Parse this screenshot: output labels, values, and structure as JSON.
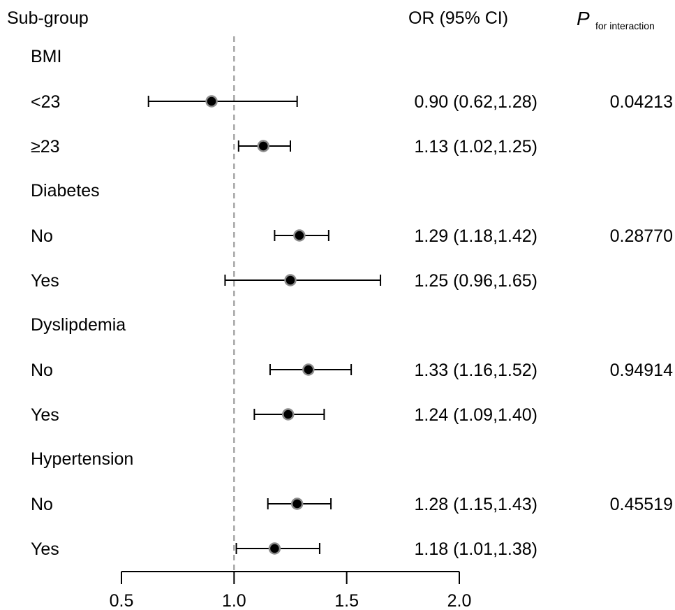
{
  "chart_data": {
    "type": "forest",
    "headers": {
      "subgroup": "Sub-group",
      "or_ci": "OR (95% CI)",
      "p_symbol": "P",
      "p_subscript": "for interaction"
    },
    "reference_line": 1.0,
    "xlim": [
      0.5,
      2.0
    ],
    "xticks": [
      "0.5",
      "1.0",
      "1.5",
      "2.0"
    ],
    "groups": [
      {
        "name": "BMI",
        "p_interaction": "0.04213",
        "rows": [
          {
            "label": "<23",
            "or": 0.9,
            "lo": 0.62,
            "hi": 1.28,
            "text": "0.90 (0.62,1.28)"
          },
          {
            "label": "≥23",
            "or": 1.13,
            "lo": 1.02,
            "hi": 1.25,
            "text": "1.13 (1.02,1.25)"
          }
        ]
      },
      {
        "name": "Diabetes",
        "p_interaction": "0.28770",
        "rows": [
          {
            "label": "No",
            "or": 1.29,
            "lo": 1.18,
            "hi": 1.42,
            "text": "1.29 (1.18,1.42)"
          },
          {
            "label": "Yes",
            "or": 1.25,
            "lo": 0.96,
            "hi": 1.65,
            "text": "1.25 (0.96,1.65)"
          }
        ]
      },
      {
        "name": "Dyslipdemia",
        "p_interaction": "0.94914",
        "rows": [
          {
            "label": "No",
            "or": 1.33,
            "lo": 1.16,
            "hi": 1.52,
            "text": "1.33 (1.16,1.52)"
          },
          {
            "label": "Yes",
            "or": 1.24,
            "lo": 1.09,
            "hi": 1.4,
            "text": "1.24 (1.09,1.40)"
          }
        ]
      },
      {
        "name": "Hypertension",
        "p_interaction": "0.45519",
        "rows": [
          {
            "label": "No",
            "or": 1.28,
            "lo": 1.15,
            "hi": 1.43,
            "text": "1.28 (1.15,1.43)"
          },
          {
            "label": "Yes",
            "or": 1.18,
            "lo": 1.01,
            "hi": 1.38,
            "text": "1.18 (1.01,1.38)"
          }
        ]
      }
    ],
    "colors": {
      "point_fill": "#000000",
      "point_stroke": "#8c8c8c",
      "reference_line": "#a6a6a6",
      "text": "#000000"
    }
  }
}
